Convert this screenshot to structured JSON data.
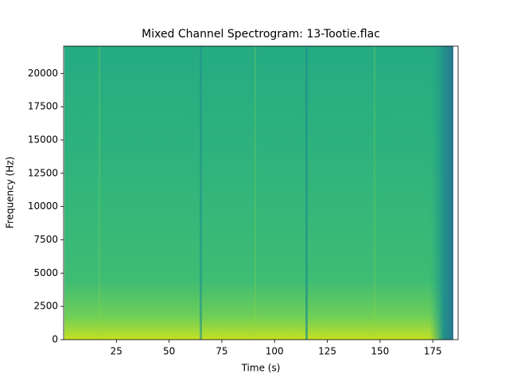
{
  "chart_data": {
    "type": "spectrogram",
    "title": "Mixed Channel Spectrogram: 13-Tootie.flac",
    "x_label": "Time (s)",
    "y_label": "Frequency (Hz)",
    "xlim": [
      0,
      187
    ],
    "xticks": [
      25,
      50,
      75,
      100,
      125,
      150,
      175
    ],
    "ylim": [
      0,
      22050
    ],
    "yticks": [
      0,
      2500,
      5000,
      7500,
      10000,
      12500,
      15000,
      17500,
      20000
    ]
  }
}
